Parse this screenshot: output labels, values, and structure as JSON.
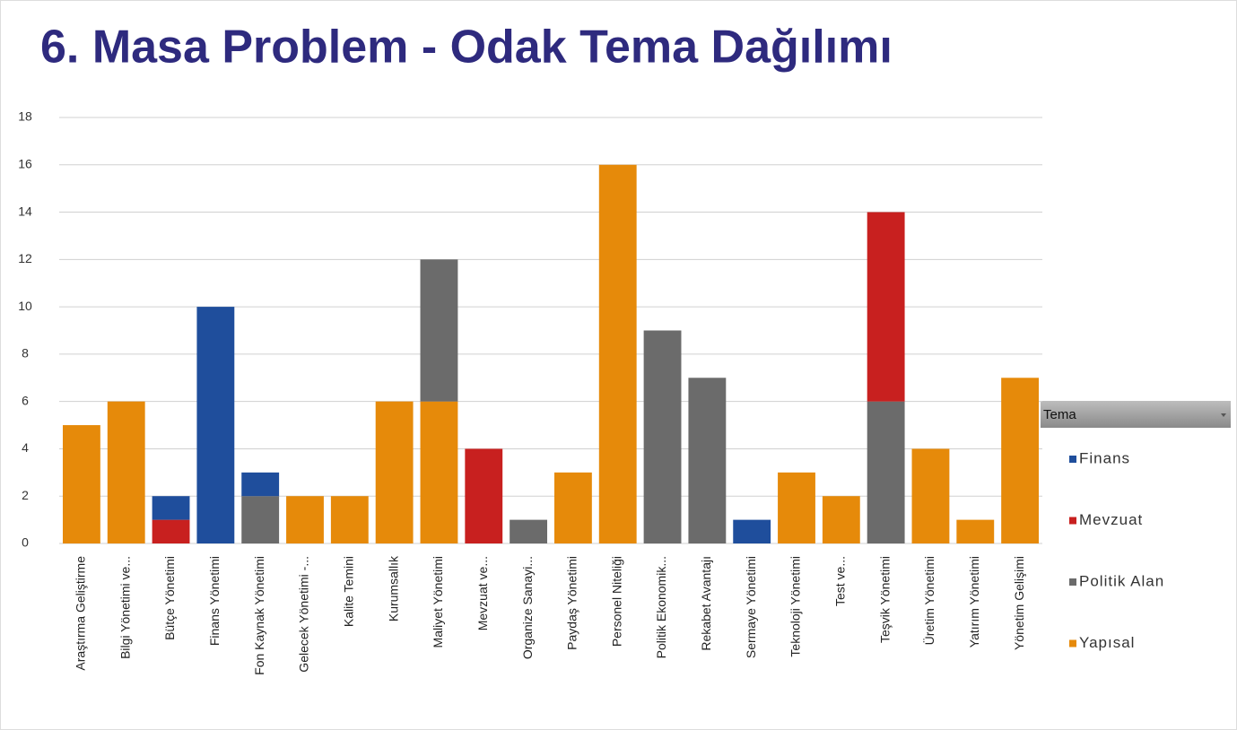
{
  "chart_data": {
    "type": "bar",
    "stacked": true,
    "title": "6. Masa Problem - Odak Tema Dağılımı",
    "legend_title": "Tema",
    "categories": [
      "Araştırma Geliştirme",
      "Bilgi Yönetimi ve...",
      "Bütçe Yönetimi",
      "Finans Yönetimi",
      "Fon Kaynak Yönetimi",
      "Gelecek Yönetimi -...",
      "Kalite Temini",
      "Kurumsallık",
      "Maliyet Yönetimi",
      "Mevzuat ve...",
      "Organize Sanayi...",
      "Paydaş Yönetimi",
      "Personel Niteliği",
      "Politik Ekonomik...",
      "Rekabet Avantajı",
      "Sermaye Yönetimi",
      "Teknoloji Yönetimi",
      "Test ve...",
      "Teşvik Yönetimi",
      "Üretim Yönetimi",
      "Yatırım Yönetimi",
      "Yönetim Gelişimi"
    ],
    "series": [
      {
        "name": "Finans",
        "color": "#1f4e9c",
        "values": [
          null,
          null,
          1,
          10,
          1,
          null,
          null,
          null,
          null,
          null,
          null,
          null,
          null,
          null,
          null,
          1,
          null,
          null,
          null,
          null,
          null,
          null
        ]
      },
      {
        "name": "Mevzuat",
        "color": "#c8201f",
        "values": [
          null,
          null,
          1,
          null,
          null,
          null,
          null,
          null,
          null,
          4,
          null,
          null,
          null,
          null,
          null,
          null,
          null,
          null,
          8,
          null,
          null,
          null
        ]
      },
      {
        "name": "Politik Alan",
        "color": "#6b6b6b",
        "values": [
          null,
          null,
          null,
          null,
          2,
          null,
          null,
          null,
          6,
          null,
          1,
          null,
          null,
          9,
          7,
          null,
          null,
          null,
          6,
          null,
          null,
          null
        ]
      },
      {
        "name": "Yapısal",
        "color": "#e68a0a",
        "values": [
          5,
          6,
          null,
          null,
          null,
          2,
          2,
          6,
          6,
          null,
          null,
          3,
          16,
          null,
          null,
          null,
          3,
          2,
          null,
          4,
          1,
          7
        ]
      }
    ],
    "ylim": [
      0,
      18
    ],
    "yticks": [
      0,
      2,
      4,
      6,
      8,
      10,
      12,
      14,
      16,
      18
    ],
    "grid": true,
    "legend": "right"
  }
}
